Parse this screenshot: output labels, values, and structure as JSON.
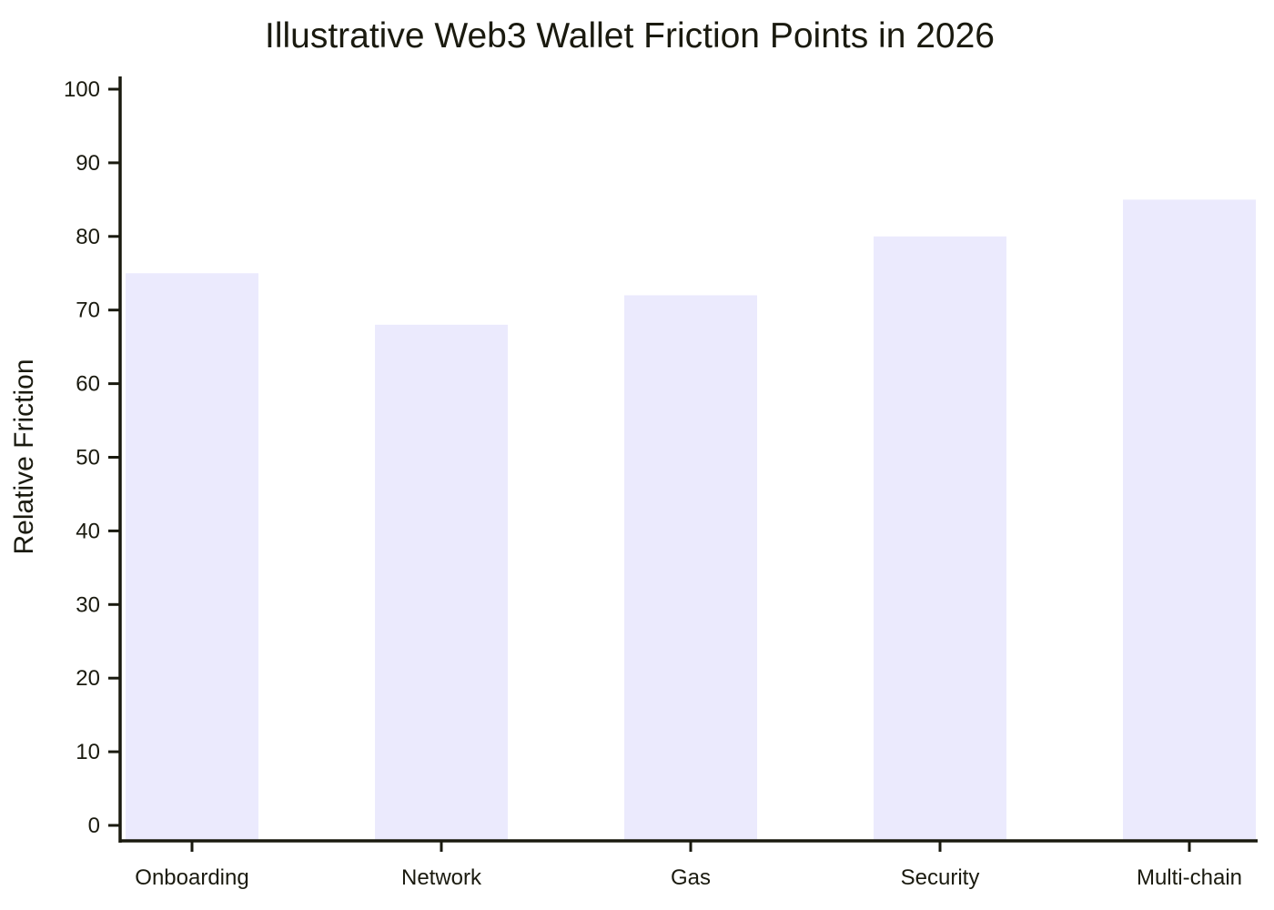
{
  "chart_data": {
    "type": "bar",
    "title": "Illustrative Web3 Wallet Friction Points in 2026",
    "xlabel": "",
    "ylabel": "Relative Friction",
    "categories": [
      "Onboarding",
      "Network",
      "Gas",
      "Security",
      "Multi-chain"
    ],
    "values": [
      75,
      68,
      72,
      80,
      85
    ],
    "ylim": [
      0,
      100
    ],
    "yticks": [
      "0",
      "10",
      "20",
      "30",
      "40",
      "50",
      "60",
      "70",
      "80",
      "90",
      "100"
    ],
    "grid": false,
    "legend": "none",
    "colors": {
      "bar": "#ebeafd",
      "axis": "#1a1a0f",
      "text": "#1a1a0f",
      "background": "#ffffff"
    }
  }
}
